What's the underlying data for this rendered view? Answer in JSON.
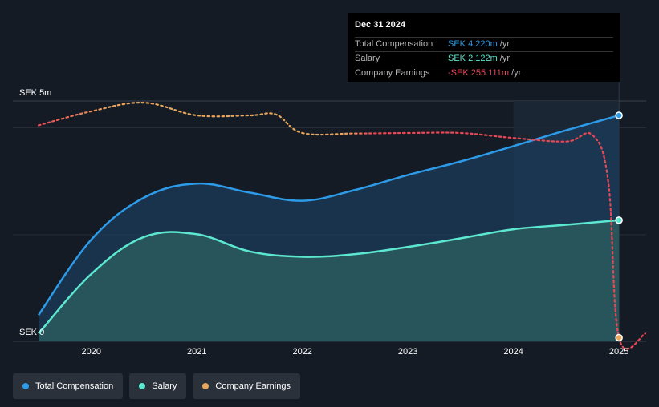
{
  "chart_data": {
    "type": "area",
    "y_axis_labels": {
      "top": "SEK 5m",
      "bottom": "SEK 0"
    },
    "ylim": [
      0,
      5
    ],
    "x_ticks": [
      "2020",
      "2021",
      "2022",
      "2023",
      "2024",
      "2025"
    ],
    "xlim": [
      2019.5,
      2025.25
    ],
    "grid": true,
    "legend_placement": "bottom-left",
    "highlight_range": [
      2024.0,
      2025.0
    ],
    "series": [
      {
        "name": "Total Compensation",
        "color": "#2d9be8",
        "points": [
          [
            2019.5,
            0.58
          ],
          [
            2020.0,
            2.25
          ],
          [
            2020.5,
            3.18
          ],
          [
            2021.0,
            3.49
          ],
          [
            2021.5,
            3.29
          ],
          [
            2022.0,
            3.11
          ],
          [
            2022.5,
            3.35
          ],
          [
            2023.0,
            3.68
          ],
          [
            2023.5,
            3.98
          ],
          [
            2024.0,
            4.32
          ],
          [
            2024.5,
            4.67
          ],
          [
            2025.0,
            5.0
          ]
        ]
      },
      {
        "name": "Salary",
        "color": "#5ce8d0",
        "points": [
          [
            2019.5,
            0.17
          ],
          [
            2020.0,
            1.49
          ],
          [
            2020.5,
            2.31
          ],
          [
            2021.0,
            2.37
          ],
          [
            2021.5,
            1.99
          ],
          [
            2022.0,
            1.87
          ],
          [
            2022.5,
            1.93
          ],
          [
            2023.0,
            2.09
          ],
          [
            2023.5,
            2.28
          ],
          [
            2024.0,
            2.48
          ],
          [
            2024.5,
            2.58
          ],
          [
            2025.0,
            2.68
          ]
        ]
      },
      {
        "name": "Company Earnings",
        "color": "#e6a65d",
        "negative_color": "#e84855",
        "points": [
          [
            2019.5,
            4.78
          ],
          [
            2020.0,
            5.09
          ],
          [
            2020.5,
            5.28
          ],
          [
            2021.0,
            5.0
          ],
          [
            2021.5,
            5.0
          ],
          [
            2021.75,
            5.02
          ],
          [
            2022.0,
            4.61
          ],
          [
            2022.5,
            4.6
          ],
          [
            2023.0,
            4.61
          ],
          [
            2023.5,
            4.61
          ],
          [
            2024.0,
            4.5
          ],
          [
            2024.5,
            4.42
          ],
          [
            2024.75,
            4.56
          ],
          [
            2024.9,
            3.5
          ],
          [
            2025.0,
            0.08
          ],
          [
            2025.25,
            0.17
          ]
        ]
      }
    ],
    "tooltip": {
      "date": "Dec 31 2024",
      "rows": [
        {
          "label": "Total Compensation",
          "value": "SEK 4.220m",
          "unit": "/yr",
          "color": "#2d9be8"
        },
        {
          "label": "Salary",
          "value": "SEK 2.122m",
          "unit": "/yr",
          "color": "#5ce8d0"
        },
        {
          "label": "Company Earnings",
          "value": "-SEK 255.111m",
          "unit": "/yr",
          "color": "#e84855"
        }
      ]
    }
  },
  "legend": [
    {
      "label": "Total Compensation",
      "color": "#2d9be8"
    },
    {
      "label": "Salary",
      "color": "#5ce8d0"
    },
    {
      "label": "Company Earnings",
      "color": "#e6a65d"
    }
  ]
}
